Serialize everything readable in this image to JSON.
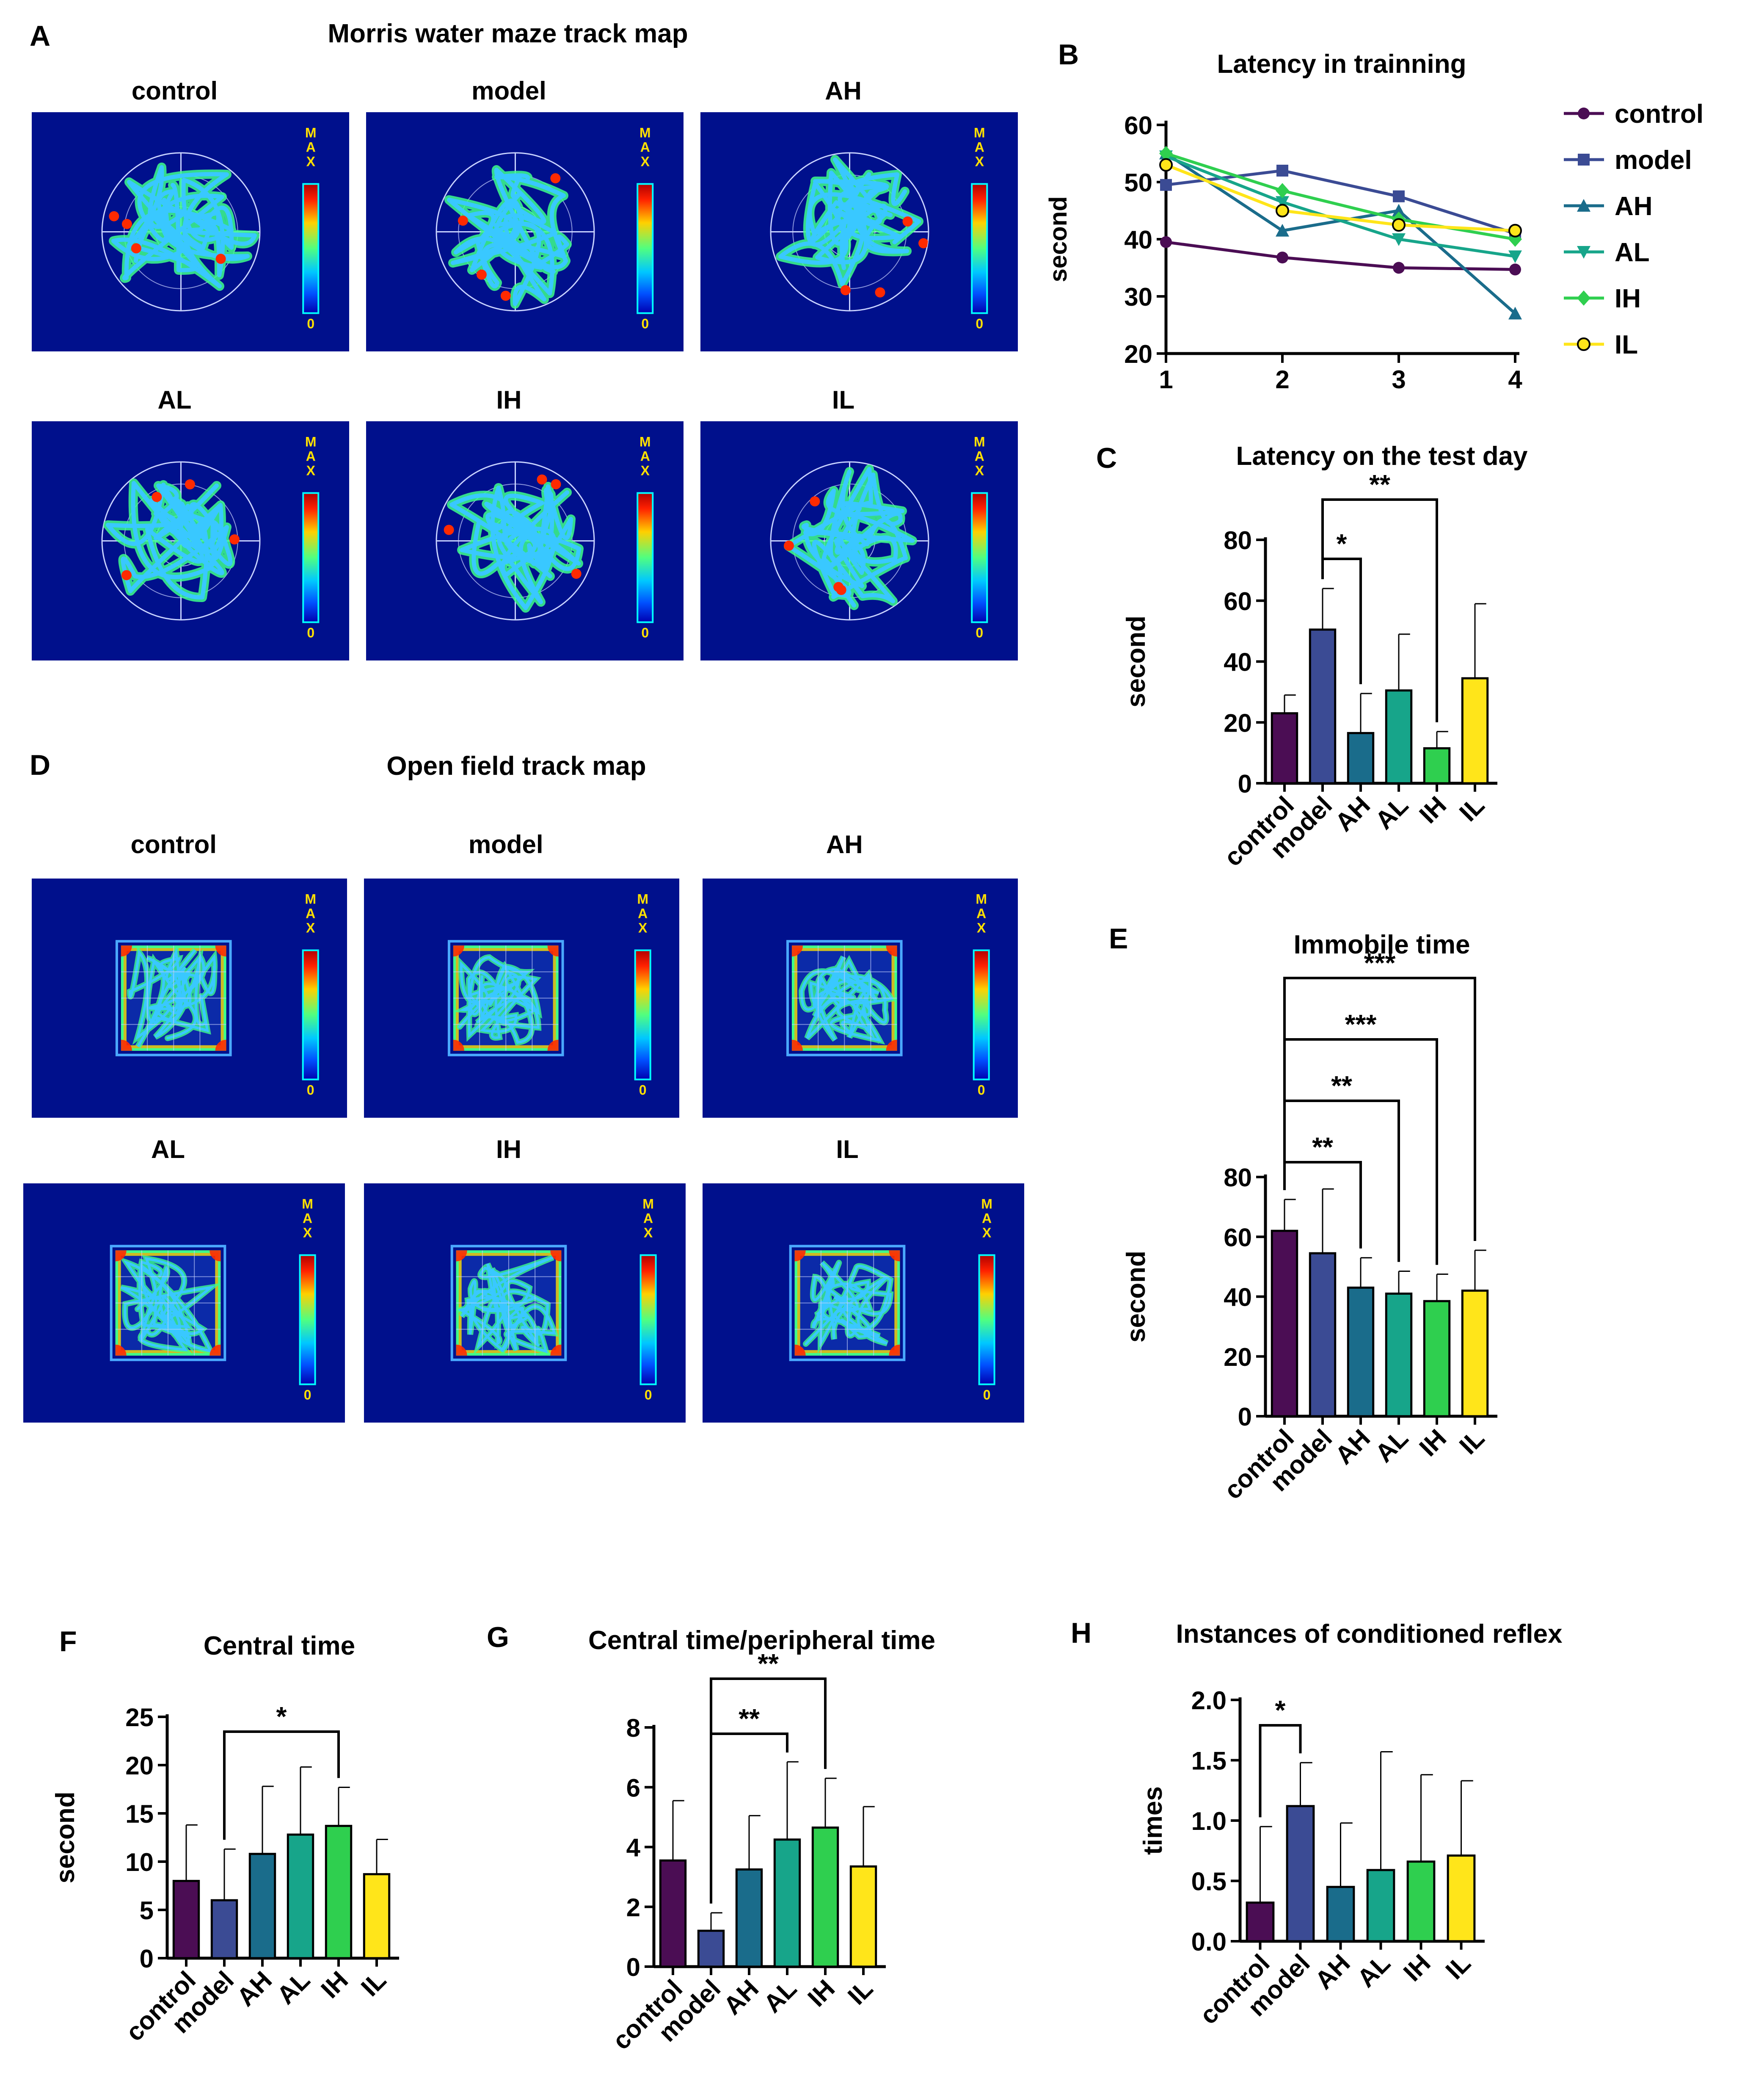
{
  "figure": {
    "panel_letters": [
      "A",
      "B",
      "C",
      "D",
      "E",
      "F",
      "G",
      "H"
    ],
    "panels": {
      "A": {
        "title": "Morris water maze track map"
      },
      "D": {
        "title": "Open field track map"
      }
    },
    "trackmap": {
      "groups": [
        "control",
        "model",
        "AH",
        "AL",
        "IH",
        "IL"
      ],
      "scale_max": "MAX",
      "scale_min": "0",
      "colors": {
        "background": "#00108c",
        "ring": "#c8d2ff",
        "path_core": "#39c8ff",
        "path_edge": "#3dff8c",
        "hot": "#ff2a00",
        "warm": "#ffe000"
      }
    },
    "group_colors": {
      "control": "#4b0d54",
      "model": "#3b4b94",
      "AH": "#1a6c8b",
      "AL": "#17a58a",
      "IH": "#2fcf4f",
      "IL": "#ffe51a"
    }
  },
  "chart_data": [
    {
      "panel": "B",
      "type": "line",
      "title": "Latency in trainning",
      "ylabel": "second",
      "xlabel": "",
      "x": [
        1,
        2,
        3,
        4
      ],
      "xticks": [
        "1",
        "2",
        "3",
        "4"
      ],
      "ylim": [
        20,
        60
      ],
      "yticks": [
        "20",
        "30",
        "40",
        "50",
        "60"
      ],
      "legend": "right",
      "series": [
        {
          "name": "control",
          "color": "#4b0d54",
          "marker": "circle",
          "values": [
            39.5,
            36.8,
            35.0,
            34.7
          ]
        },
        {
          "name": "model",
          "color": "#3b4b94",
          "marker": "square",
          "values": [
            49.5,
            52.0,
            47.5,
            41.0
          ]
        },
        {
          "name": "AH",
          "color": "#1a6c8b",
          "marker": "triangle-up",
          "values": [
            55.0,
            41.5,
            45.0,
            27.0
          ]
        },
        {
          "name": "AL",
          "color": "#17a58a",
          "marker": "triangle-down",
          "values": [
            54.5,
            46.5,
            40.0,
            37.0
          ]
        },
        {
          "name": "IH",
          "color": "#2fcf4f",
          "marker": "diamond",
          "values": [
            55.0,
            48.5,
            43.5,
            40.0
          ]
        },
        {
          "name": "IL",
          "color": "#ffe51a",
          "marker": "open-circle",
          "values": [
            53.0,
            45.0,
            42.5,
            41.5
          ]
        }
      ]
    },
    {
      "panel": "C",
      "type": "bar",
      "title": "Latency on the test day",
      "ylabel": "second",
      "categories": [
        "control",
        "model",
        "AH",
        "AL",
        "IH",
        "IL"
      ],
      "values": [
        23.0,
        50.5,
        16.5,
        30.5,
        11.5,
        34.5
      ],
      "errors": [
        6.0,
        13.5,
        13.0,
        18.5,
        5.5,
        24.5
      ],
      "ylim": [
        0,
        80
      ],
      "yticks": [
        "0",
        "20",
        "40",
        "60",
        "80"
      ],
      "significance": [
        {
          "from": 1,
          "to": 2,
          "label": "*"
        },
        {
          "from": 1,
          "to": 4,
          "label": "**"
        }
      ]
    },
    {
      "panel": "E",
      "type": "bar",
      "title": "Immobile time",
      "ylabel": "second",
      "categories": [
        "control",
        "model",
        "AH",
        "AL",
        "IH",
        "IL"
      ],
      "values": [
        62.0,
        54.5,
        43.0,
        41.0,
        38.5,
        42.0
      ],
      "errors": [
        10.5,
        21.5,
        10.0,
        7.5,
        9.0,
        13.5
      ],
      "ylim": [
        0,
        80
      ],
      "yticks": [
        "0",
        "20",
        "40",
        "60",
        "80"
      ],
      "significance": [
        {
          "from": 0,
          "to": 2,
          "label": "**"
        },
        {
          "from": 0,
          "to": 3,
          "label": "**"
        },
        {
          "from": 0,
          "to": 4,
          "label": "***"
        },
        {
          "from": 0,
          "to": 5,
          "label": "***"
        }
      ]
    },
    {
      "panel": "F",
      "type": "bar",
      "title": "Central time",
      "ylabel": "second",
      "categories": [
        "control",
        "model",
        "AH",
        "AL",
        "IH",
        "IL"
      ],
      "values": [
        8.0,
        6.0,
        10.8,
        12.8,
        13.7,
        8.7
      ],
      "errors": [
        5.8,
        5.3,
        7.0,
        7.0,
        4.0,
        3.6
      ],
      "ylim": [
        0,
        25
      ],
      "yticks": [
        "0",
        "5",
        "10",
        "15",
        "20",
        "25"
      ],
      "significance": [
        {
          "from": 1,
          "to": 4,
          "label": "*"
        }
      ]
    },
    {
      "panel": "G",
      "type": "bar",
      "title": "Central time/peripheral  time",
      "ylabel": "",
      "categories": [
        "control",
        "model",
        "AH",
        "AL",
        "IH",
        "IL"
      ],
      "values": [
        3.55,
        1.2,
        3.25,
        4.25,
        4.65,
        3.35
      ],
      "errors": [
        2.0,
        0.6,
        1.8,
        2.6,
        1.65,
        2.0
      ],
      "ylim": [
        0,
        8
      ],
      "yticks": [
        "0",
        "2",
        "4",
        "6",
        "8"
      ],
      "significance": [
        {
          "from": 1,
          "to": 3,
          "label": "**"
        },
        {
          "from": 1,
          "to": 4,
          "label": "**"
        }
      ]
    },
    {
      "panel": "H",
      "type": "bar",
      "title": "Instances of conditioned reflex",
      "ylabel": "times",
      "categories": [
        "control",
        "model",
        "AH",
        "AL",
        "IH",
        "IL"
      ],
      "values": [
        0.32,
        1.12,
        0.45,
        0.59,
        0.66,
        0.71
      ],
      "errors": [
        0.63,
        0.36,
        0.53,
        0.98,
        0.72,
        0.62
      ],
      "ylim": [
        0,
        2.0
      ],
      "yticks": [
        "0.0",
        "0.5",
        "1.0",
        "1.5",
        "2.0"
      ],
      "significance": [
        {
          "from": 0,
          "to": 1,
          "label": "*"
        }
      ]
    }
  ]
}
